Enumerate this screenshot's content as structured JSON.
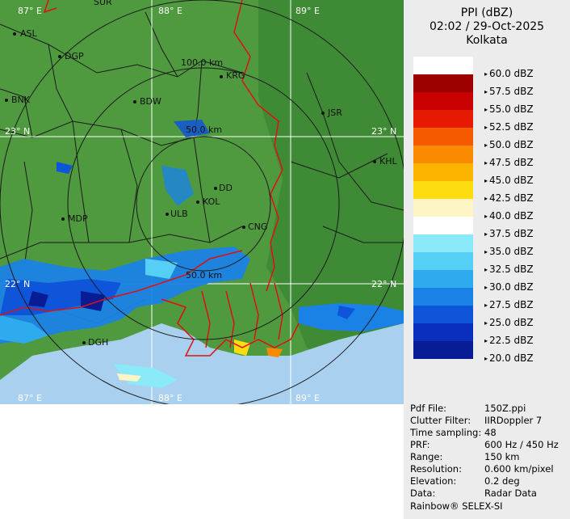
{
  "header": {
    "product": "PPI (dBZ)",
    "datetime": "02:02 / 29-Oct-2025",
    "station": "Kolkata"
  },
  "map": {
    "lon_labels": [
      "87° E",
      "88° E",
      "89° E",
      "87° E",
      "88° E",
      "89° E"
    ],
    "lat_labels": [
      "23° N",
      "23° N",
      "22° N",
      "22° N"
    ],
    "range_rings": [
      "100.0 km",
      "50.0 km",
      "50.0 km"
    ],
    "places": [
      "SUR",
      "ASL",
      "DGP",
      "KRG",
      "BNK",
      "BDW",
      "JSR",
      "KHL",
      "DD",
      "KOL",
      "ULB",
      "MDP",
      "CNG",
      "DGH"
    ]
  },
  "legend": {
    "items": [
      {
        "label": "60.0 dBZ",
        "color": "#ffffff"
      },
      {
        "label": "57.5 dBZ",
        "color": "#9e0000"
      },
      {
        "label": "55.0 dBZ",
        "color": "#c80000"
      },
      {
        "label": "52.5 dBZ",
        "color": "#e61a00"
      },
      {
        "label": "50.0 dBZ",
        "color": "#f55a00"
      },
      {
        "label": "47.5 dBZ",
        "color": "#fa8a00"
      },
      {
        "label": "45.0 dBZ",
        "color": "#fcb400"
      },
      {
        "label": "42.5 dBZ",
        "color": "#fddc10"
      },
      {
        "label": "40.0 dBZ",
        "color": "#fdf5c4"
      },
      {
        "label": "37.5 dBZ",
        "color": "#ffffff"
      },
      {
        "label": "35.0 dBZ",
        "color": "#8aeafa"
      },
      {
        "label": "32.5 dBZ",
        "color": "#55cff5"
      },
      {
        "label": "30.0 dBZ",
        "color": "#2eaaee"
      },
      {
        "label": "27.5 dBZ",
        "color": "#1a82e6"
      },
      {
        "label": "25.0 dBZ",
        "color": "#0f55d9"
      },
      {
        "label": "22.5 dBZ",
        "color": "#0a2fbf"
      },
      {
        "label": "20.0 dBZ",
        "color": "#081c96"
      }
    ]
  },
  "info": {
    "rows": [
      {
        "key": "Pdf File:",
        "value": "150Z.ppi"
      },
      {
        "key": "Clutter Filter:",
        "value": "IIRDoppler 7"
      },
      {
        "key": "Time sampling:",
        "value": "48"
      },
      {
        "key": "PRF:",
        "value": "600 Hz / 450 Hz"
      },
      {
        "key": "Range:",
        "value": "150 km"
      },
      {
        "key": "Resolution:",
        "value": "0.600 km/pixel"
      },
      {
        "key": "Elevation:",
        "value": "0.2 deg"
      },
      {
        "key": "Data:",
        "value": "Radar Data"
      }
    ],
    "footer": "Rainbow® SELEX-SI"
  },
  "colors": {
    "land": "#4f9a3e",
    "sea": "#aad0f0",
    "border": "#e01010",
    "district": "#1a1a1a",
    "grid": "#ffffff",
    "panel": "#ececec"
  }
}
